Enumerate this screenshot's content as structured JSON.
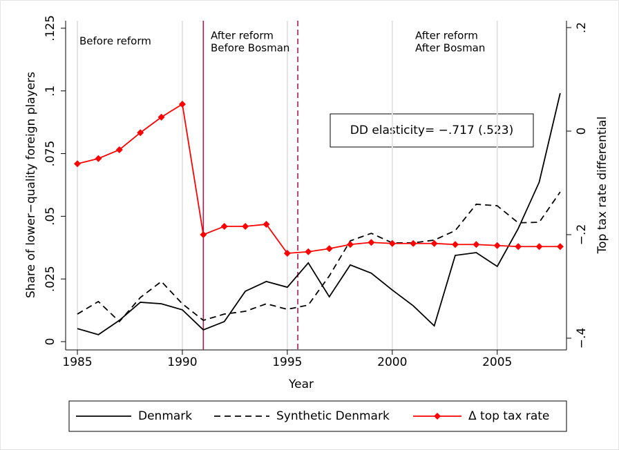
{
  "chart_data": {
    "type": "line",
    "xlabel": "Year",
    "ylabel": "Share of lower−quality foreign players",
    "y2label": "Top tax rate differential",
    "x": [
      1985,
      1986,
      1987,
      1988,
      1989,
      1990,
      1991,
      1992,
      1993,
      1994,
      1995,
      1996,
      1997,
      1998,
      1999,
      2000,
      2001,
      2002,
      2003,
      2004,
      2005,
      2006,
      2007,
      2008
    ],
    "xlim": [
      1984.44,
      2008.3
    ],
    "xticks": [
      1985,
      1990,
      1995,
      2000,
      2005
    ],
    "ylim": [
      -0.0033,
      0.128
    ],
    "yticks": [
      0,
      {
        "value": 0.025,
        "label": ".025"
      },
      {
        "value": 0.05,
        "label": ".05"
      },
      {
        "value": 0.075,
        "label": ".075"
      },
      {
        "value": 0.1,
        "label": ".1"
      },
      {
        "value": 0.125,
        "label": ".125"
      }
    ],
    "y2lim": [
      -0.4227,
      0.2133
    ],
    "y2ticks": [
      {
        "value": -0.4,
        "label": "−.4"
      },
      {
        "value": -0.2,
        "label": "−.2"
      },
      0,
      {
        "value": 0.2,
        "label": ".2"
      }
    ],
    "grid": true,
    "series": [
      {
        "name": "Denmark",
        "color": "#000000",
        "dash": "solid",
        "values": [
          0.0052,
          0.0028,
          0.0085,
          0.0157,
          0.0151,
          0.0127,
          0.0047,
          0.008,
          0.0201,
          0.024,
          0.0217,
          0.0314,
          0.0179,
          0.0306,
          0.0273,
          0.0206,
          0.0143,
          0.0063,
          0.0344,
          0.0355,
          0.03,
          0.0451,
          0.0636,
          0.0991
        ]
      },
      {
        "name": "Synthetic Denmark",
        "color": "#000000",
        "dash": "dashed",
        "values": [
          0.011,
          0.016,
          0.008,
          0.0176,
          0.024,
          0.0151,
          0.0085,
          0.011,
          0.0121,
          0.0151,
          0.0129,
          0.0146,
          0.0262,
          0.0402,
          0.0432,
          0.0394,
          0.0394,
          0.0405,
          0.0443,
          0.0548,
          0.0542,
          0.0474,
          0.0476,
          0.0597
        ]
      },
      {
        "name": "Δ top tax rate",
        "color": "#ff0000",
        "dash": "solid",
        "marker": "diamond",
        "axis": "y2",
        "values": [
          -0.063,
          -0.053,
          -0.036,
          -0.003,
          0.027,
          0.052,
          -0.2,
          -0.184,
          -0.184,
          -0.18,
          -0.236,
          -0.233,
          -0.227,
          -0.219,
          -0.215,
          -0.217,
          -0.217,
          -0.217,
          -0.219,
          -0.219,
          -0.221,
          -0.223,
          -0.223,
          -0.223
        ]
      }
    ],
    "vlines": [
      {
        "x": 1991,
        "dash": "solid",
        "color": "#a8174f"
      },
      {
        "x": 1995.5,
        "dash": "dashed",
        "color": "#a8174f"
      }
    ],
    "annotations": [
      [
        "Before reform"
      ],
      [
        "After reform",
        "Before Bosman"
      ],
      [
        "After reform",
        "After Bosman"
      ]
    ],
    "note": "DD elasticity= −.717 (.523)"
  }
}
